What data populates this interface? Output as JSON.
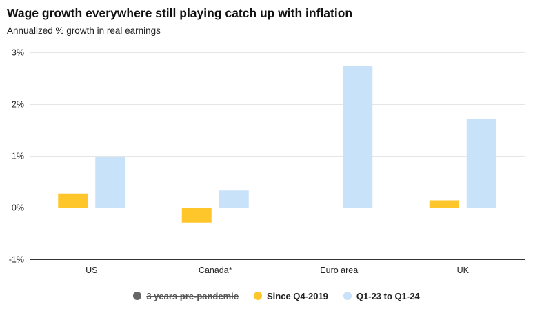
{
  "chart_data": {
    "type": "bar",
    "title": "Wage growth everywhere still playing catch up with inflation",
    "subtitle": "Annualized % growth in real earnings",
    "xlabel": "",
    "ylabel": "",
    "ylim": [
      -1,
      3
    ],
    "yticks": [
      {
        "value": 3,
        "label": "3%"
      },
      {
        "value": 2,
        "label": "2%"
      },
      {
        "value": 1,
        "label": "1%"
      },
      {
        "value": 0,
        "label": "0%"
      },
      {
        "value": -1,
        "label": "-1%"
      }
    ],
    "grid": true,
    "legend_position": "bottom",
    "categories": [
      "US",
      "Canada*",
      "Euro area",
      "UK"
    ],
    "series": [
      {
        "name": "3 years pre-pandemic",
        "color": "#666666",
        "hidden": true,
        "values": [
          null,
          null,
          null,
          null
        ]
      },
      {
        "name": "Since Q4-2019",
        "color": "#FFC62B",
        "hidden": false,
        "values": [
          0.27,
          -0.29,
          0,
          0.14
        ]
      },
      {
        "name": "Q1-23 to Q1-24",
        "color": "#C7E2F9",
        "hidden": false,
        "values": [
          0.98,
          0.33,
          2.74,
          1.71
        ]
      }
    ]
  }
}
